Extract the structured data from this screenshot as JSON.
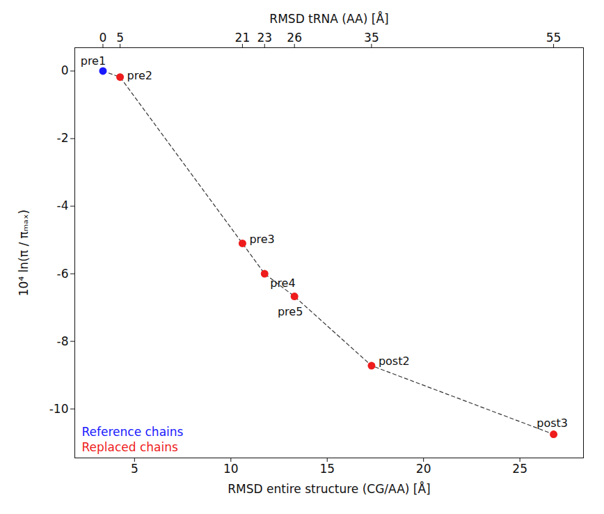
{
  "chart_data": {
    "type": "scatter",
    "x_label": "RMSD entire structure (CG/AA) [Å]",
    "y_label": "10⁴ ln(π / πₘₐₓ)",
    "top_axis": {
      "label": "RMSD tRNA (AA) [Å]",
      "ticks": [
        {
          "value": 3.36,
          "label": "0"
        },
        {
          "value": 4.25,
          "label": "5"
        },
        {
          "value": 10.6,
          "label": "21"
        },
        {
          "value": 11.75,
          "label": "23"
        },
        {
          "value": 13.3,
          "label": "26"
        },
        {
          "value": 17.3,
          "label": "35"
        },
        {
          "value": 26.75,
          "label": "55"
        }
      ]
    },
    "labels": [
      "pre1",
      "pre2",
      "pre3",
      "pre4",
      "pre5",
      "post2",
      "post3"
    ],
    "x": [
      3.36,
      4.25,
      10.6,
      11.75,
      13.3,
      17.3,
      26.75
    ],
    "y": [
      0,
      -0.18,
      -5.1,
      -6.0,
      -6.67,
      -8.72,
      -10.75
    ],
    "colors": [
      "#1a1aff",
      "#ee1c1c",
      "#ee1c1c",
      "#ee1c1c",
      "#ee1c1c",
      "#ee1c1c",
      "#ee1c1c"
    ],
    "marker": "circle",
    "line_style": "dashed",
    "legend": "bottom-left",
    "legend_entries": [
      {
        "name": "Reference chains",
        "color": "#1a1aff"
      },
      {
        "name": "Replaced chains",
        "color": "#ee1c1c"
      }
    ],
    "xlim": [
      1.9,
      28.3
    ],
    "ylim": [
      -11.45,
      0.69
    ],
    "xticks": [
      5,
      10,
      15,
      20,
      25
    ],
    "yticks": [
      0,
      -2,
      -4,
      -6,
      -8,
      -10
    ],
    "grid": false
  }
}
